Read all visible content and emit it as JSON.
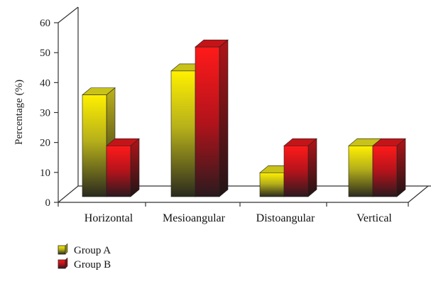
{
  "chart_data": {
    "type": "bar",
    "title": "",
    "xlabel": "",
    "ylabel": "Percentage (%)",
    "ylim": [
      0,
      60
    ],
    "yticks": [
      0,
      10,
      20,
      30,
      40,
      50,
      60
    ],
    "categories": [
      "Horizontal",
      "Mesioangular",
      "Distoangular",
      "Vertical"
    ],
    "series": [
      {
        "name": "Group A",
        "values": [
          34,
          42,
          8,
          17
        ],
        "color": "#f2e21c"
      },
      {
        "name": "Group B",
        "values": [
          17,
          50,
          17,
          17
        ],
        "color": "#e0161c"
      }
    ],
    "legend": "bottom-left",
    "grid": false,
    "style": "3d-bars"
  }
}
